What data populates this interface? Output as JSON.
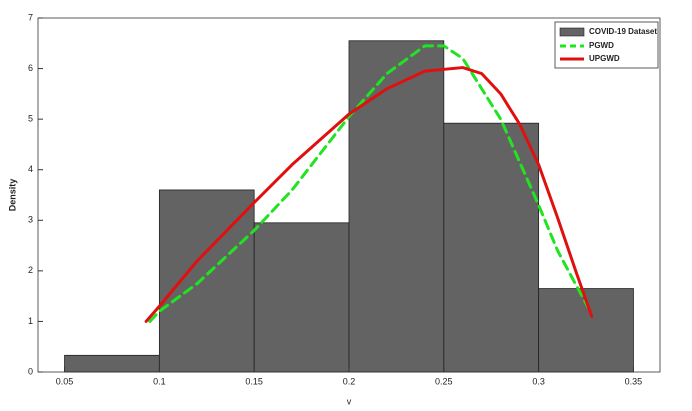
{
  "chart_data": {
    "type": "histogram",
    "xlabel": "v",
    "ylabel": "Density",
    "name": "COVID-19 Dataset",
    "color": "#636363",
    "bins": [
      0.05,
      0.1,
      0.15,
      0.2,
      0.25,
      0.3,
      0.35
    ],
    "values": [
      0.33,
      3.6,
      2.95,
      6.55,
      4.92,
      1.65
    ],
    "series": [
      {
        "name": "PGWD",
        "color": "#22e322",
        "dashed": true,
        "x": [
          0.095,
          0.1,
          0.12,
          0.15,
          0.17,
          0.2,
          0.22,
          0.24,
          0.25,
          0.26,
          0.28,
          0.3,
          0.31,
          0.32,
          0.328
        ],
        "values": [
          1.0,
          1.2,
          1.75,
          2.8,
          3.6,
          5.05,
          5.9,
          6.45,
          6.45,
          6.2,
          5.0,
          3.3,
          2.4,
          1.7,
          1.15
        ]
      },
      {
        "name": "UPGWD",
        "color": "#e01010",
        "dashed": false,
        "x": [
          0.093,
          0.1,
          0.12,
          0.15,
          0.17,
          0.2,
          0.22,
          0.24,
          0.26,
          0.27,
          0.28,
          0.29,
          0.3,
          0.31,
          0.32,
          0.328
        ],
        "values": [
          1.0,
          1.3,
          2.2,
          3.35,
          4.1,
          5.1,
          5.6,
          5.95,
          6.02,
          5.9,
          5.5,
          4.9,
          4.1,
          3.05,
          1.95,
          1.1
        ]
      }
    ],
    "xlim": [
      0.036,
      0.364
    ],
    "ylim": [
      0,
      7
    ],
    "xticks": [
      0.05,
      0.1,
      0.15,
      0.2,
      0.25,
      0.3,
      0.35
    ],
    "yticks": [
      0,
      1,
      2,
      3,
      4,
      5,
      6,
      7
    ],
    "legend": "upper right"
  }
}
